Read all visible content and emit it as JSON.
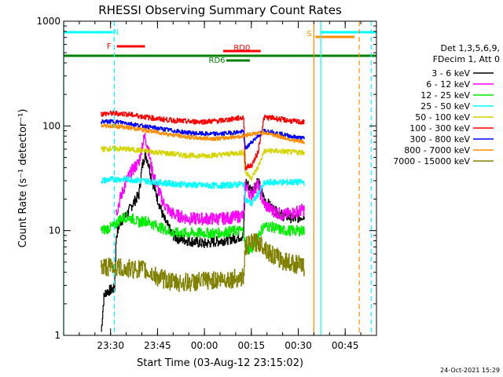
{
  "chart_data": {
    "type": "line",
    "title": "RHESSI Observing Summary Count Rates",
    "xlabel": "Start Time (03-Aug-12 23:15:02)",
    "ylabel": "Count Rate (s⁻¹ detector⁻¹)",
    "yscale": "log",
    "ylim": [
      1,
      1000
    ],
    "xlim_minutes": [
      0,
      100
    ],
    "y_ticks": [
      {
        "value": 1,
        "label": "1"
      },
      {
        "value": 10,
        "label": "10"
      },
      {
        "value": 100,
        "label": "100"
      },
      {
        "value": 1000,
        "label": "1000"
      }
    ],
    "x_ticks": [
      {
        "minute": 15,
        "label": "23:30"
      },
      {
        "minute": 30,
        "label": "23:45"
      },
      {
        "minute": 45,
        "label": "00:00"
      },
      {
        "minute": 60,
        "label": "00:15"
      },
      {
        "minute": 75,
        "label": "00:30"
      },
      {
        "minute": 90,
        "label": "00:45"
      }
    ],
    "legend": {
      "position": "right",
      "header": [
        "Det 1,3,5,6,9,",
        "FDecim 1, Att 0"
      ],
      "entries": [
        {
          "label": "3 - 6 keV",
          "color": "#000000"
        },
        {
          "label": "6 - 12 keV",
          "color": "#ff00ff"
        },
        {
          "label": "12 - 25 keV",
          "color": "#00ee00"
        },
        {
          "label": "25 - 50 keV",
          "color": "#00ffff"
        },
        {
          "label": "50 - 100 keV",
          "color": "#d4d400"
        },
        {
          "label": "100 - 300 keV",
          "color": "#ff0000"
        },
        {
          "label": "300 - 800 keV",
          "color": "#0000ff"
        },
        {
          "label": "800 - 7000 keV",
          "color": "#ff8c00"
        },
        {
          "label": "7000 - 15000 keV",
          "color": "#808000"
        }
      ]
    },
    "data_gaps_minutes": [
      [
        0,
        12
      ],
      [
        35.6,
        38.5
      ],
      [
        77,
        100
      ]
    ],
    "series": [
      {
        "name": "3 - 6 keV",
        "color": "#000000",
        "noise": 0.05,
        "points": [
          [
            12,
            1.1
          ],
          [
            12.8,
            2.3
          ],
          [
            13.5,
            2.6
          ],
          [
            16.2,
            2.8
          ],
          [
            16.8,
            9
          ],
          [
            18,
            12
          ],
          [
            20,
            14
          ],
          [
            22,
            18
          ],
          [
            24,
            22
          ],
          [
            25,
            40
          ],
          [
            26,
            55
          ],
          [
            27,
            45
          ],
          [
            28,
            32
          ],
          [
            30,
            20
          ],
          [
            32,
            13
          ],
          [
            34,
            10
          ],
          [
            35,
            9
          ],
          [
            36,
            8.5
          ],
          [
            40,
            8
          ],
          [
            45,
            7.5
          ],
          [
            50,
            8
          ],
          [
            55,
            8.5
          ],
          [
            57.5,
            9
          ],
          [
            58,
            30
          ],
          [
            59,
            27
          ],
          [
            60,
            24
          ],
          [
            61,
            27
          ],
          [
            62,
            30
          ],
          [
            63,
            25
          ],
          [
            64,
            20
          ],
          [
            66,
            17
          ],
          [
            68,
            15
          ],
          [
            70,
            14
          ],
          [
            74,
            13
          ],
          [
            77,
            14
          ]
        ]
      },
      {
        "name": "6 - 12 keV",
        "color": "#ff00ff",
        "noise": 0.06,
        "points": [
          [
            16.8,
            15
          ],
          [
            18,
            20
          ],
          [
            20,
            30
          ],
          [
            22,
            38
          ],
          [
            24,
            45
          ],
          [
            25,
            65
          ],
          [
            26,
            80
          ],
          [
            27,
            60
          ],
          [
            28,
            40
          ],
          [
            30,
            25
          ],
          [
            32,
            18
          ],
          [
            34,
            15
          ],
          [
            36,
            14
          ],
          [
            40,
            13
          ],
          [
            45,
            13
          ],
          [
            50,
            13
          ],
          [
            55,
            13.5
          ],
          [
            57.5,
            14
          ],
          [
            58,
            28
          ],
          [
            59,
            24
          ],
          [
            60,
            22
          ],
          [
            61,
            25
          ],
          [
            62,
            28
          ],
          [
            63,
            22
          ],
          [
            64,
            18
          ],
          [
            66,
            16
          ],
          [
            68,
            15
          ],
          [
            70,
            14
          ],
          [
            74,
            15
          ],
          [
            77,
            16
          ]
        ]
      },
      {
        "name": "12 - 25 keV",
        "color": "#00ee00",
        "noise": 0.05,
        "points": [
          [
            12,
            10
          ],
          [
            16,
            11
          ],
          [
            18,
            13
          ],
          [
            20,
            13.5
          ],
          [
            22,
            13
          ],
          [
            24,
            12
          ],
          [
            26,
            12.5
          ],
          [
            30,
            11
          ],
          [
            35,
            9.5
          ],
          [
            40,
            9.5
          ],
          [
            45,
            9.5
          ],
          [
            50,
            9.5
          ],
          [
            55,
            10
          ],
          [
            57.5,
            10
          ],
          [
            58,
            7
          ],
          [
            60,
            6.5
          ],
          [
            62,
            9
          ],
          [
            64,
            11
          ],
          [
            66,
            11
          ],
          [
            70,
            10
          ],
          [
            74,
            10
          ],
          [
            77,
            10
          ]
        ]
      },
      {
        "name": "25 - 50 keV",
        "color": "#00ffff",
        "noise": 0.03,
        "points": [
          [
            12,
            30
          ],
          [
            16,
            31
          ],
          [
            20,
            31
          ],
          [
            25,
            30
          ],
          [
            30,
            29
          ],
          [
            35,
            28
          ],
          [
            40,
            27.5
          ],
          [
            45,
            27
          ],
          [
            50,
            27
          ],
          [
            55,
            27.5
          ],
          [
            57.5,
            28
          ],
          [
            58,
            20
          ],
          [
            60,
            18
          ],
          [
            62,
            22
          ],
          [
            64,
            28
          ],
          [
            66,
            29
          ],
          [
            70,
            29
          ],
          [
            74,
            29
          ],
          [
            77,
            29
          ]
        ]
      },
      {
        "name": "50 - 100 keV",
        "color": "#d4d400",
        "noise": 0.025,
        "points": [
          [
            12,
            60
          ],
          [
            16,
            61
          ],
          [
            20,
            60
          ],
          [
            25,
            58
          ],
          [
            30,
            56
          ],
          [
            35,
            54
          ],
          [
            40,
            52
          ],
          [
            45,
            52
          ],
          [
            50,
            53
          ],
          [
            55,
            55
          ],
          [
            57.5,
            56
          ],
          [
            58,
            36
          ],
          [
            60,
            32
          ],
          [
            62,
            40
          ],
          [
            64,
            57
          ],
          [
            66,
            58
          ],
          [
            70,
            57
          ],
          [
            74,
            56
          ],
          [
            77,
            56
          ]
        ]
      },
      {
        "name": "100 - 300 keV",
        "color": "#ff0000",
        "noise": 0.025,
        "points": [
          [
            12,
            130
          ],
          [
            16,
            132
          ],
          [
            20,
            130
          ],
          [
            25,
            123
          ],
          [
            30,
            117
          ],
          [
            35,
            113
          ],
          [
            40,
            110
          ],
          [
            45,
            110
          ],
          [
            50,
            112
          ],
          [
            55,
            118
          ],
          [
            57.5,
            120
          ],
          [
            58,
            40
          ],
          [
            60,
            42
          ],
          [
            62,
            55
          ],
          [
            64,
            120
          ],
          [
            66,
            120
          ],
          [
            70,
            115
          ],
          [
            74,
            110
          ],
          [
            77,
            108
          ]
        ]
      },
      {
        "name": "300 - 800 keV",
        "color": "#0000ff",
        "noise": 0.02,
        "points": [
          [
            12,
            110
          ],
          [
            16,
            110
          ],
          [
            20,
            107
          ],
          [
            25,
            100
          ],
          [
            30,
            95
          ],
          [
            35,
            90
          ],
          [
            40,
            86
          ],
          [
            45,
            84
          ],
          [
            50,
            84
          ],
          [
            55,
            87
          ],
          [
            57.5,
            88
          ],
          [
            58,
            60
          ],
          [
            60,
            70
          ],
          [
            62,
            80
          ],
          [
            64,
            90
          ],
          [
            66,
            88
          ],
          [
            70,
            83
          ],
          [
            74,
            78
          ],
          [
            77,
            76
          ]
        ]
      },
      {
        "name": "800 - 7000 keV",
        "color": "#ff8c00",
        "noise": 0.02,
        "points": [
          [
            12,
            100
          ],
          [
            16,
            100
          ],
          [
            20,
            97
          ],
          [
            25,
            92
          ],
          [
            30,
            87
          ],
          [
            35,
            82
          ],
          [
            40,
            78
          ],
          [
            45,
            76
          ],
          [
            50,
            76
          ],
          [
            55,
            79
          ],
          [
            57.5,
            80
          ],
          [
            58,
            82
          ],
          [
            60,
            84
          ],
          [
            62,
            85
          ],
          [
            64,
            87
          ],
          [
            66,
            84
          ],
          [
            70,
            78
          ],
          [
            74,
            72
          ],
          [
            77,
            70
          ]
        ]
      },
      {
        "name": "7000 - 15000 keV",
        "color": "#808000",
        "noise": 0.09,
        "points": [
          [
            12,
            4.5
          ],
          [
            16,
            4.5
          ],
          [
            20,
            4.3
          ],
          [
            25,
            4.3
          ],
          [
            30,
            3.6
          ],
          [
            35,
            3.2
          ],
          [
            40,
            3.2
          ],
          [
            45,
            3.3
          ],
          [
            50,
            3.4
          ],
          [
            55,
            3.5
          ],
          [
            57.5,
            3.6
          ],
          [
            58,
            7
          ],
          [
            60,
            7.5
          ],
          [
            62,
            7.8
          ],
          [
            64,
            7.2
          ],
          [
            66,
            6
          ],
          [
            70,
            5.2
          ],
          [
            74,
            4.8
          ],
          [
            77,
            4.5
          ]
        ]
      }
    ],
    "vertical_markers": [
      {
        "minute": 0,
        "color": "#00ffff",
        "style": "solid"
      },
      {
        "minute": 16.2,
        "color": "#00ffff",
        "style": "dashed"
      },
      {
        "minute": 80,
        "color": "#ff8c00",
        "style": "solid"
      },
      {
        "minute": 82.2,
        "color": "#00ffff",
        "style": "solid"
      },
      {
        "minute": 94.5,
        "color": "#ff8c00",
        "style": "dashed"
      },
      {
        "minute": 98.3,
        "color": "#00ffff",
        "style": "dashed"
      }
    ],
    "bars": [
      {
        "label": "N",
        "color": "#00ffff",
        "segments": [
          [
            0,
            15.7
          ],
          [
            82.2,
            100
          ]
        ],
        "row": 1,
        "label_at": 16.7
      },
      {
        "label": "S",
        "color": "#ff8c00",
        "segments": [
          [
            80.5,
            93
          ]
        ],
        "row": 2,
        "label_at": 78.5
      },
      {
        "label": "F",
        "color": "#ff0000",
        "segments": [
          [
            17,
            26
          ]
        ],
        "row": 4,
        "label_at": 14.5
      },
      {
        "label": "RD0",
        "color": "#ff0000",
        "segments": [
          [
            51,
            63
          ]
        ],
        "row": 5,
        "label_at": 57
      },
      {
        "label": "",
        "color": "#008000",
        "segments": [
          [
            0,
            100
          ]
        ],
        "row": 6
      },
      {
        "label": "RD6",
        "color": "#008000",
        "segments": [
          [
            52,
            59.5
          ]
        ],
        "row": 7,
        "label_at": 49
      }
    ],
    "timestamp": "24-Oct-2021 15:29"
  }
}
